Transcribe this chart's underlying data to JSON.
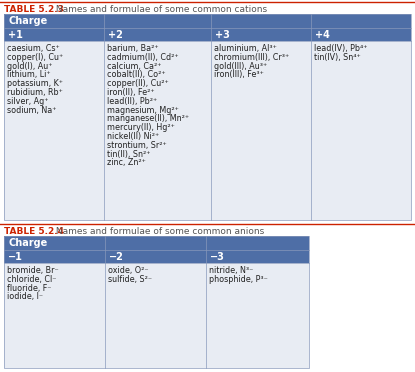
{
  "table1_title_bold": "TABLE 5.2.3",
  "table1_title_rest": " Names and formulae of some common cations",
  "table2_title_bold": "TABLE 5.2.4",
  "table2_title_rest": " Names and formulae of some common anions",
  "header_bg": "#4e6ea6",
  "cell_bg": "#e8ecf3",
  "title_bold_color": "#cc2200",
  "title_rest_color": "#555555",
  "table1_col_headers": [
    "+1",
    "+2",
    "+3",
    "+4"
  ],
  "table1_col1": [
    "caesium, Cs⁺",
    "copper(I), Cu⁺",
    "gold(I), Au⁺",
    "lithium, Li⁺",
    "potassium, K⁺",
    "rubidium, Rb⁺",
    "silver, Ag⁺",
    "sodium, Na⁺"
  ],
  "table1_col2": [
    "barium, Ba²⁺",
    "cadmium(II), Cd²⁺",
    "calcium, Ca²⁺",
    "cobalt(II), Co²⁺",
    "copper(II), Cu²⁺",
    "iron(II), Fe²⁺",
    "lead(II), Pb²⁺",
    "magnesium, Mg²⁺",
    "manganese(II), Mn²⁺",
    "mercury(II), Hg²⁺",
    "nickel(II) Ni²⁺",
    "strontium, Sr²⁺",
    "tin(II), Sn²⁺",
    "zinc, Zn²⁺"
  ],
  "table1_col3": [
    "aluminium, Al³⁺",
    "chromium(III), Cr³⁺",
    "gold(III), Au³⁺",
    "iron(III), Fe³⁺"
  ],
  "table1_col4": [
    "lead(IV), Pb⁴⁺",
    "tin(IV), Sn⁴⁺"
  ],
  "table2_col_headers": [
    "−1",
    "−2",
    "−3"
  ],
  "table2_col1": [
    "bromide, Br⁻",
    "chloride, Cl⁻",
    "fluoride, F⁻",
    "iodide, I⁻"
  ],
  "table2_col2": [
    "oxide, O²⁻",
    "sulfide, S²⁻"
  ],
  "table2_col3": [
    "nitride, N³⁻",
    "phosphide, P³⁻"
  ],
  "red_line_color": "#cc2200",
  "border_color": "#8899bb",
  "text_color": "#222222",
  "white": "#ffffff"
}
